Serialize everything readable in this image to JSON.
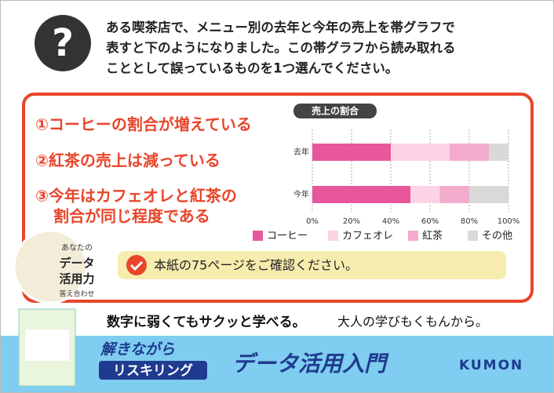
{
  "question": [
    "ある喫茶店で、メニュー別の去年と今年の売上を帯グラフで",
    "表すと下のようになりました。この帯グラフから読み取れる",
    "こととして誤っているものを1つ選んでください。"
  ],
  "options": [
    [
      "①コーヒーの割合が増えている"
    ],
    [
      "②紅茶の売上は減っている"
    ],
    [
      "③今年はカフェオレと紅茶の",
      "割合が同じ程度である"
    ]
  ],
  "badge": [
    "あなたの",
    "データ",
    "活用力",
    "答え合わせ"
  ],
  "notice": "本紙の75ページをご確認ください。",
  "slogan": {
    "main": "数字に弱くてもサクッと学べる。",
    "sub": "大人の学びもくもんから。"
  },
  "brand": {
    "tag1": "解きながら",
    "tag2": "リスキリング",
    "title": "データ活用入門",
    "logo": "KUMON"
  },
  "chart_data": {
    "type": "stacked-bar-horizontal",
    "title": "売上の割合",
    "categories": [
      "去年",
      "今年"
    ],
    "series": [
      {
        "name": "コーヒー",
        "color": "#e8579b",
        "values": [
          40,
          50
        ]
      },
      {
        "name": "カフェオレ",
        "color": "#fbd3e5",
        "values": [
          30,
          15
        ]
      },
      {
        "name": "紅茶",
        "color": "#f3abcc",
        "values": [
          20,
          15
        ]
      },
      {
        "name": "その他",
        "color": "#d9d9d9",
        "values": [
          10,
          20
        ]
      }
    ],
    "xlim": [
      0,
      100
    ],
    "xticks": [
      {
        "value": 0,
        "label": "0%"
      },
      {
        "value": 20,
        "label": "20%"
      },
      {
        "value": 40,
        "label": "40%"
      },
      {
        "value": 60,
        "label": "60%"
      },
      {
        "value": 80,
        "label": "80%"
      },
      {
        "value": 100,
        "label": "100%"
      }
    ],
    "grid": true
  }
}
